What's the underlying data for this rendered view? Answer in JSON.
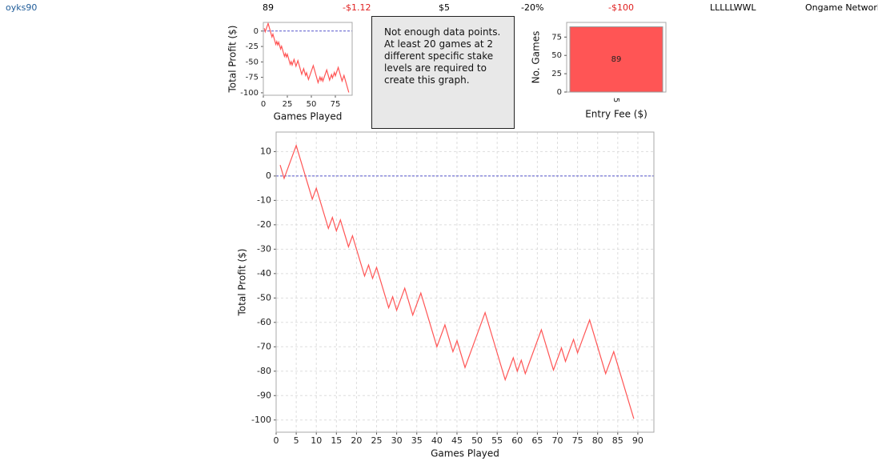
{
  "header": [
    {
      "text": "oyks90",
      "color": "#1f5c99"
    },
    {
      "text": "89",
      "color": "#000000"
    },
    {
      "text": "-$1.12",
      "color": "#e02020"
    },
    {
      "text": "$5",
      "color": "#000000"
    },
    {
      "text": "-20%",
      "color": "#000000"
    },
    {
      "text": "-$100",
      "color": "#e02020"
    },
    {
      "text": "LLLLLWWL",
      "color": "#000000"
    },
    {
      "text": "Ongame Network",
      "color": "#000000"
    }
  ],
  "message": "Not enough data points. At least 20 games at 2 different specific stake levels are required to create this graph.",
  "chart_data": [
    {
      "type": "line",
      "x_label": "Games Played",
      "y_label": "Total Profit ($)",
      "xlim": [
        0,
        92.5
      ],
      "ylim": [
        -104,
        14
      ],
      "xticks": [
        0,
        25,
        50,
        75
      ],
      "yticks": [
        0,
        -25,
        -50,
        -75,
        -100
      ],
      "zero_line": true,
      "grid": false,
      "x": [
        1,
        2,
        5,
        9,
        10,
        13,
        14,
        15,
        16,
        18,
        19,
        22,
        23,
        24,
        25,
        28,
        29,
        30,
        32,
        34,
        36,
        40,
        42,
        44,
        45,
        47,
        52,
        57,
        59,
        60,
        61,
        62,
        66,
        69,
        71,
        72,
        74,
        75,
        78,
        82,
        84,
        89
      ],
      "series": [
        {
          "name": "Total Profit",
          "color": "#ff5555",
          "values": [
            4.5,
            -1,
            12.5,
            -9.5,
            -5,
            -21.5,
            -17,
            -22.5,
            -18,
            -29,
            -24.5,
            -41,
            -36.5,
            -42,
            -37.5,
            -54,
            -49.5,
            -55,
            -46,
            -57,
            -48,
            -70,
            -61,
            -72,
            -67.5,
            -78.5,
            -56,
            -83.5,
            -74.5,
            -80,
            -75.5,
            -81,
            -63,
            -79.5,
            -70.5,
            -76,
            -67,
            -72.5,
            -59,
            -81,
            -72,
            -99.5
          ]
        }
      ]
    },
    {
      "type": "bar",
      "x_label": "Entry Fee ($)",
      "y_label": "No. Games",
      "categories": [
        "5"
      ],
      "values": [
        89
      ],
      "color": "#ff5555",
      "ylim": [
        0,
        95
      ],
      "yticks": [
        0,
        25,
        50,
        75
      ]
    },
    {
      "type": "line",
      "x_label": "Games Played",
      "y_label": "Total Profit ($)",
      "xlim": [
        0,
        94
      ],
      "ylim": [
        -105,
        18
      ],
      "xticks": [
        0,
        5,
        10,
        15,
        20,
        25,
        30,
        35,
        40,
        45,
        50,
        55,
        60,
        65,
        70,
        75,
        80,
        85,
        90
      ],
      "yticks": [
        10,
        0,
        -10,
        -20,
        -30,
        -40,
        -50,
        -60,
        -70,
        -80,
        -90,
        -100
      ],
      "zero_line": true,
      "grid": true,
      "x": [
        1,
        2,
        5,
        9,
        10,
        13,
        14,
        15,
        16,
        18,
        19,
        22,
        23,
        24,
        25,
        28,
        29,
        30,
        32,
        34,
        36,
        40,
        42,
        44,
        45,
        47,
        52,
        57,
        59,
        60,
        61,
        62,
        66,
        69,
        71,
        72,
        74,
        75,
        78,
        82,
        84,
        89
      ],
      "series": [
        {
          "name": "Total Profit",
          "color": "#ff5555",
          "values": [
            4.5,
            -1,
            12.5,
            -9.5,
            -5,
            -21.5,
            -17,
            -22.5,
            -18,
            -29,
            -24.5,
            -41,
            -36.5,
            -42,
            -37.5,
            -54,
            -49.5,
            -55,
            -46,
            -57,
            -48,
            -70,
            -61,
            -72,
            -67.5,
            -78.5,
            -56,
            -83.5,
            -74.5,
            -80,
            -75.5,
            -81,
            -63,
            -79.5,
            -70.5,
            -76,
            -67,
            -72.5,
            -59,
            -81,
            -72,
            -99.5
          ]
        }
      ]
    }
  ]
}
